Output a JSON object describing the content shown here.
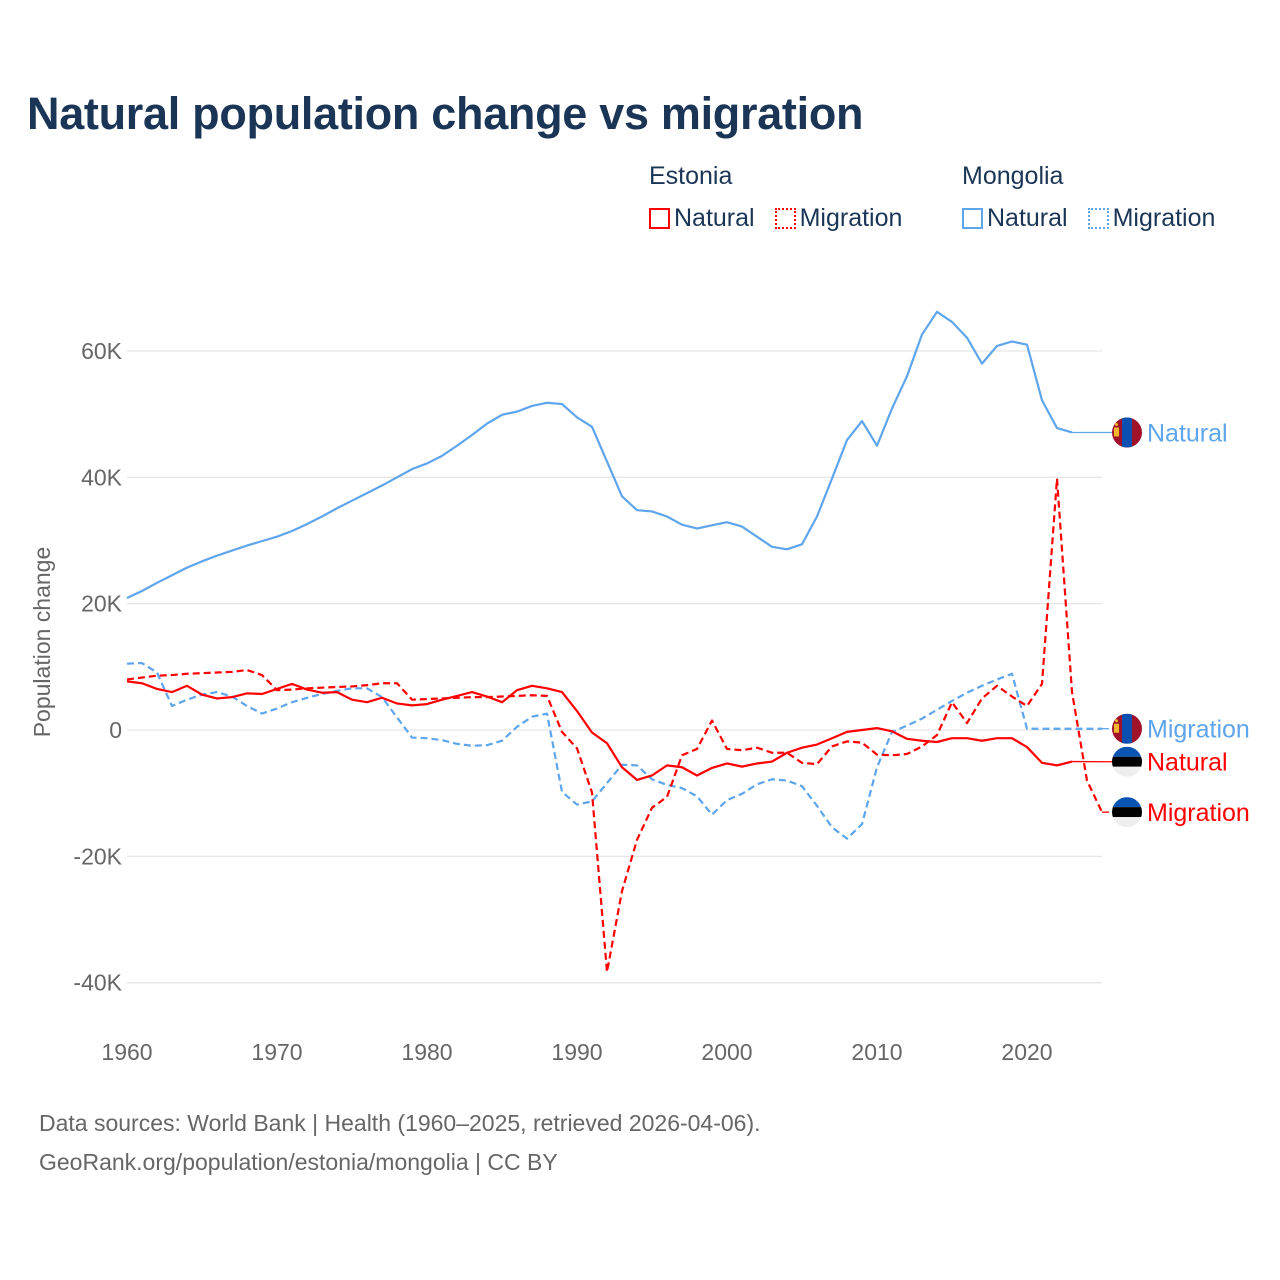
{
  "title": "Natural population change vs migration",
  "legend": [
    {
      "country": "Estonia",
      "items": [
        {
          "label": "Natural",
          "style": "solid",
          "color": "#ff0000"
        },
        {
          "label": "Migration",
          "style": "dotted",
          "color": "#ff0000"
        }
      ]
    },
    {
      "country": "Mongolia",
      "items": [
        {
          "label": "Natural",
          "style": "solid",
          "color": "#5ea5ec"
        },
        {
          "label": "Migration",
          "style": "dotted",
          "color": "#5ea5ec"
        }
      ]
    }
  ],
  "footer": {
    "line1": "Data sources: World Bank | Health (1960–2025, retrieved 2026-04-06).",
    "line2": "GeoRank.org/population/estonia/mongolia | CC BY"
  },
  "chart_data": {
    "type": "line",
    "title": "Natural population change vs migration",
    "xlabel": "",
    "ylabel": "Population change",
    "xlim": [
      1960,
      2025
    ],
    "ylim": [
      -45000,
      70000
    ],
    "grid": true,
    "legend_position": "top-right",
    "x_ticks": [
      1960,
      1970,
      1980,
      1990,
      2000,
      2010,
      2020
    ],
    "x_tick_labels": [
      "1960",
      "1970",
      "1980",
      "1990",
      "2000",
      "2010",
      "2020"
    ],
    "y_ticks": [
      -40000,
      -20000,
      0,
      20000,
      40000,
      60000
    ],
    "y_tick_labels": [
      "-40K",
      "-20K",
      "0",
      "20K",
      "40K",
      "60K"
    ],
    "series": [
      {
        "name": "Mongolia Natural",
        "country": "Mongolia",
        "label": "Natural",
        "color": "#5ea5ec",
        "dash": false,
        "flag": "mongolia-flag",
        "start": 1960,
        "values": [
          20.9,
          22.0,
          23.3,
          24.5,
          25.7,
          26.7,
          27.6,
          28.4,
          29.2,
          29.9,
          30.6,
          31.5,
          32.6,
          33.8,
          35.1,
          36.3,
          37.5,
          38.7,
          40.0,
          41.3,
          42.2,
          43.4,
          45.0,
          46.7,
          48.5,
          49.9,
          50.4,
          51.3,
          51.8,
          51.6,
          49.5,
          48.0,
          42.5,
          37.0,
          34.8,
          34.6,
          33.8,
          32.5,
          31.9,
          32.4,
          32.9,
          32.2,
          30.6,
          29.0,
          28.6,
          29.4,
          33.8,
          39.8,
          45.9,
          48.9,
          45.0,
          50.9,
          56.0,
          62.6,
          66.2,
          64.6,
          62.1,
          58.0,
          60.8,
          61.5,
          61.0,
          52.2,
          47.8,
          47.1
        ]
      },
      {
        "name": "Mongolia Migration",
        "country": "Mongolia",
        "label": "Migration",
        "color": "#5ea5ec",
        "dash": true,
        "flag": "mongolia-flag",
        "start": 1960,
        "values": [
          10.5,
          10.6,
          9.1,
          3.8,
          4.8,
          5.6,
          6.0,
          5.3,
          3.8,
          2.6,
          3.4,
          4.4,
          5.1,
          5.7,
          6.2,
          6.6,
          6.6,
          5.2,
          2.0,
          -1.2,
          -1.3,
          -1.6,
          -2.2,
          -2.5,
          -2.4,
          -1.7,
          0.5,
          2.1,
          2.6,
          -9.8,
          -11.8,
          -11.3,
          -8.4,
          -5.5,
          -5.6,
          -7.8,
          -8.7,
          -9.2,
          -10.5,
          -13.4,
          -11.1,
          -10.1,
          -8.6,
          -7.8,
          -8.0,
          -8.9,
          -12.0,
          -15.4,
          -17.2,
          -14.9,
          -5.9,
          -0.3,
          0.7,
          1.8,
          3.2,
          4.6,
          5.9,
          7.0,
          8.0,
          8.9,
          0.2,
          0.2,
          0.2,
          0.2,
          0.2,
          0.2
        ]
      },
      {
        "name": "Estonia Natural",
        "country": "Estonia",
        "label": "Natural",
        "color": "#ff0000",
        "dash": false,
        "flag": "estonia-flag",
        "start": 1960,
        "values": [
          7.7,
          7.4,
          6.5,
          6.0,
          7.0,
          5.6,
          5.0,
          5.2,
          5.8,
          5.7,
          6.5,
          7.3,
          6.4,
          5.9,
          6.0,
          4.8,
          4.4,
          5.1,
          4.2,
          3.9,
          4.1,
          4.8,
          5.4,
          6.0,
          5.3,
          4.4,
          6.3,
          7.0,
          6.6,
          6.0,
          3.0,
          -0.4,
          -2.1,
          -5.9,
          -7.9,
          -7.2,
          -5.6,
          -5.9,
          -7.2,
          -6.0,
          -5.3,
          -5.8,
          -5.3,
          -5.0,
          -3.6,
          -2.8,
          -2.3,
          -1.3,
          -0.3,
          0.0,
          0.3,
          -0.2,
          -1.4,
          -1.7,
          -1.9,
          -1.3,
          -1.3,
          -1.7,
          -1.3,
          -1.3,
          -2.7,
          -5.2,
          -5.6,
          -5.0
        ]
      },
      {
        "name": "Estonia Migration",
        "country": "Estonia",
        "label": "Migration",
        "color": "#ff0000",
        "dash": true,
        "flag": "estonia-flag",
        "start": 1960,
        "values": [
          8.0,
          8.3,
          8.6,
          8.7,
          8.9,
          9.0,
          9.1,
          9.2,
          9.5,
          8.7,
          6.3,
          6.4,
          6.6,
          6.7,
          6.8,
          6.9,
          7.1,
          7.4,
          7.4,
          4.8,
          4.9,
          5.0,
          5.1,
          5.2,
          5.2,
          5.3,
          5.4,
          5.5,
          5.4,
          -0.3,
          -2.9,
          -9.9,
          -38.3,
          -25.5,
          -17.4,
          -12.3,
          -10.6,
          -4.0,
          -3.0,
          1.5,
          -3.0,
          -3.2,
          -2.8,
          -3.6,
          -3.6,
          -5.2,
          -5.4,
          -2.6,
          -1.8,
          -2.0,
          -3.9,
          -4.0,
          -3.8,
          -2.6,
          -0.8,
          4.4,
          1.1,
          5.0,
          7.0,
          5.3,
          3.8,
          7.3,
          39.8,
          6.0,
          -8.0,
          -13.0
        ]
      }
    ],
    "value_unit": "thousands"
  }
}
